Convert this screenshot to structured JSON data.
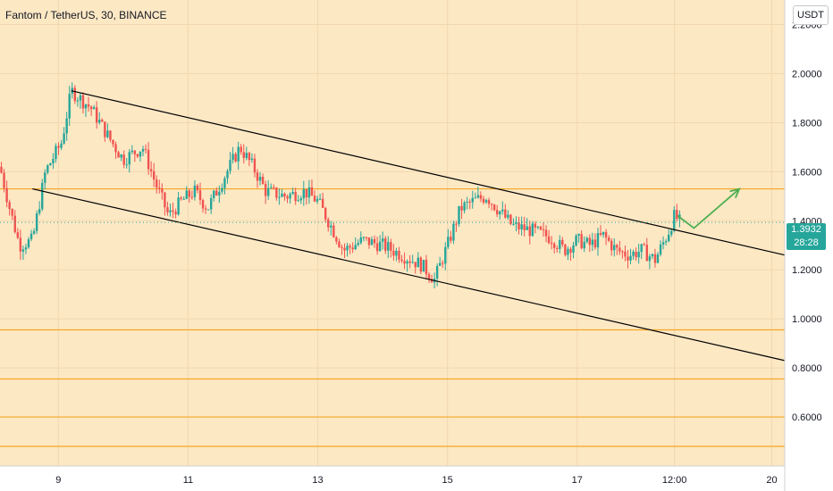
{
  "chart_title": "Fantom / TetherUS, 30, BINANCE",
  "currency": "USDT",
  "last_price": {
    "value": "1.3932",
    "countdown": "28:28",
    "color": "#26a69a"
  },
  "colors": {
    "background": "#fde8c4",
    "up": "#26a69a",
    "down": "#ef5350",
    "channel": "#000000",
    "level": "#f5a623",
    "arrow": "#4caf50"
  },
  "chart_data": {
    "type": "candlestick",
    "title": "Fantom / TetherUS, 30, BINANCE",
    "y_axis": {
      "ylim": [
        0.4,
        2.3
      ],
      "ticks": [
        "2.2000",
        "2.0000",
        "1.8000",
        "1.6000",
        "1.4000",
        "1.2000",
        "1.0000",
        "0.8000",
        "0.6000"
      ],
      "position": "right"
    },
    "x_axis": {
      "xlim": [
        8.1,
        20.2
      ],
      "ticks": [
        {
          "label": "9",
          "x": 9
        },
        {
          "label": "11",
          "x": 11
        },
        {
          "label": "13",
          "x": 13
        },
        {
          "label": "15",
          "x": 15
        },
        {
          "label": "17",
          "x": 17
        },
        {
          "label": "12:00",
          "x": 18.5
        },
        {
          "label": "20",
          "x": 20
        }
      ]
    },
    "price_path": [
      [
        8.1,
        1.62
      ],
      [
        8.25,
        1.45
      ],
      [
        8.4,
        1.3
      ],
      [
        8.6,
        1.32
      ],
      [
        8.8,
        1.6
      ],
      [
        9.05,
        1.72
      ],
      [
        9.2,
        1.93
      ],
      [
        9.5,
        1.86
      ],
      [
        9.8,
        1.73
      ],
      [
        10.0,
        1.65
      ],
      [
        10.3,
        1.7
      ],
      [
        10.5,
        1.55
      ],
      [
        10.7,
        1.42
      ],
      [
        10.9,
        1.48
      ],
      [
        11.1,
        1.52
      ],
      [
        11.3,
        1.45
      ],
      [
        11.5,
        1.55
      ],
      [
        11.8,
        1.7
      ],
      [
        12.0,
        1.62
      ],
      [
        12.2,
        1.52
      ],
      [
        12.5,
        1.5
      ],
      [
        12.8,
        1.52
      ],
      [
        13.0,
        1.48
      ],
      [
        13.2,
        1.38
      ],
      [
        13.4,
        1.28
      ],
      [
        13.7,
        1.32
      ],
      [
        14.0,
        1.3
      ],
      [
        14.3,
        1.26
      ],
      [
        14.6,
        1.22
      ],
      [
        14.8,
        1.16
      ],
      [
        15.0,
        1.3
      ],
      [
        15.2,
        1.45
      ],
      [
        15.4,
        1.48
      ],
      [
        15.6,
        1.5
      ],
      [
        15.8,
        1.44
      ],
      [
        16.0,
        1.38
      ],
      [
        16.3,
        1.36
      ],
      [
        16.6,
        1.33
      ],
      [
        16.8,
        1.28
      ],
      [
        17.0,
        1.32
      ],
      [
        17.2,
        1.3
      ],
      [
        17.4,
        1.34
      ],
      [
        17.6,
        1.28
      ],
      [
        17.8,
        1.26
      ],
      [
        18.0,
        1.28
      ],
      [
        18.2,
        1.24
      ],
      [
        18.4,
        1.35
      ],
      [
        18.5,
        1.42
      ],
      [
        18.6,
        1.39
      ]
    ],
    "channel_lines": [
      {
        "name": "upper-channel",
        "from": [
          9.2,
          1.93
        ],
        "to": [
          20.2,
          1.26
        ]
      },
      {
        "name": "lower-channel",
        "from": [
          8.6,
          1.53
        ],
        "to": [
          20.2,
          0.83
        ]
      }
    ],
    "horizontal_levels": [
      1.53,
      0.955,
      0.755,
      0.6,
      0.48
    ],
    "last_price_line": 1.3932,
    "projection_arrow": [
      [
        18.55,
        1.42
      ],
      [
        18.8,
        1.37
      ],
      [
        19.5,
        1.53
      ]
    ]
  }
}
